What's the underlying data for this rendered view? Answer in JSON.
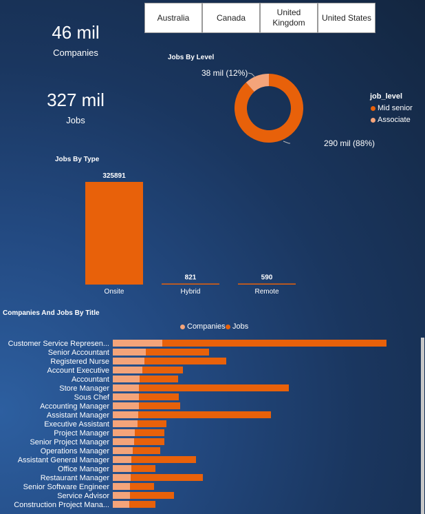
{
  "slicer": {
    "items": [
      "Australia",
      "Canada",
      "United Kingdom",
      "United States"
    ]
  },
  "kpi": {
    "companies": {
      "value": "46 mil",
      "label": "Companies"
    },
    "jobs": {
      "value": "327 mil",
      "label": "Jobs"
    }
  },
  "colors": {
    "primary": "#E8610A",
    "secondary": "#F4A47A"
  },
  "chart_data": [
    {
      "type": "donut",
      "title": "Jobs By Level",
      "legend_title": "job_level",
      "legend_position": "right",
      "categories": [
        "Mid senior",
        "Associate"
      ],
      "values": [
        290,
        38
      ],
      "data_labels": [
        "290 mil (88%)",
        "38 mil (12%)"
      ]
    },
    {
      "type": "bar",
      "title": "Jobs By Type",
      "categories": [
        "Onsite",
        "Hybrid",
        "Remote"
      ],
      "values": [
        325891,
        821,
        590
      ],
      "data_labels": [
        "325891",
        "821",
        "590"
      ]
    },
    {
      "type": "bar",
      "orientation": "horizontal",
      "stacked": true,
      "title": "Companies And Jobs By Title",
      "legend_position": "top",
      "categories": [
        "Customer Service Represen...",
        "Senior Accountant",
        "Registered Nurse",
        "Account Executive",
        "Accountant",
        "Store Manager",
        "Sous Chef",
        "Accounting Manager",
        "Assistant Manager",
        "Executive Assistant",
        "Project Manager",
        "Senior Project Manager",
        "Operations Manager",
        "Assistant General Manager",
        "Office Manager",
        "Restaurant Manager",
        "Senior Software Engineer",
        "Service Advisor",
        "Construction Project Mana..."
      ],
      "series": [
        {
          "name": "Companies",
          "values": [
            72,
            48,
            46,
            43,
            39,
            38,
            38,
            38,
            37,
            36,
            32,
            31,
            29,
            27,
            27,
            26,
            25,
            25,
            24
          ]
        },
        {
          "name": "Jobs",
          "values": [
            326,
            92,
            119,
            59,
            56,
            218,
            58,
            60,
            193,
            42,
            43,
            44,
            40,
            94,
            35,
            105,
            35,
            64,
            38
          ]
        }
      ]
    }
  ]
}
